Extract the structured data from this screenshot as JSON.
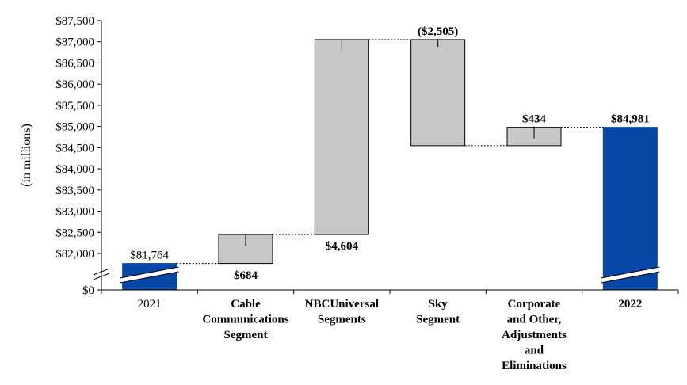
{
  "chart_data": {
    "type": "bar",
    "subtype": "waterfall",
    "ylabel": "(in millions)",
    "y_ticks": [
      "$0",
      "$82,000",
      "$82,500",
      "$83,000",
      "$83,500",
      "$84,000",
      "$84,500",
      "$85,000",
      "$85,500",
      "$86,000",
      "$86,500",
      "$87,000",
      "$87,500"
    ],
    "ylim": [
      81500,
      87500
    ],
    "axis_break": true,
    "grid": false,
    "categories": [
      {
        "lines": [
          "2021"
        ],
        "bold": false
      },
      {
        "lines": [
          "Cable",
          "Communications",
          "Segment"
        ],
        "bold": true
      },
      {
        "lines": [
          "NBCUniversal",
          "Segments"
        ],
        "bold": true
      },
      {
        "lines": [
          "Sky",
          "Segment"
        ],
        "bold": true
      },
      {
        "lines": [
          "Corporate",
          "and Other,",
          "Adjustments",
          "and",
          "Eliminations"
        ],
        "bold": true
      },
      {
        "lines": [
          "2022"
        ],
        "bold": true
      }
    ],
    "bars": [
      {
        "kind": "total",
        "value": 81764,
        "label": "$81,764",
        "label_bold": false
      },
      {
        "kind": "delta",
        "value": 684,
        "label": "$684",
        "label_bold": true
      },
      {
        "kind": "delta",
        "value": 4604,
        "label": "$4,604",
        "label_bold": true
      },
      {
        "kind": "delta",
        "value": -2505,
        "label": "($2,505)",
        "label_bold": true
      },
      {
        "kind": "delta",
        "value": 434,
        "label": "$434",
        "label_bold": true
      },
      {
        "kind": "total",
        "value": 84981,
        "label": "$84,981",
        "label_bold": true
      }
    ],
    "colors": {
      "total": "#0747a6",
      "delta": "#c8c8c8",
      "outline": "#000000"
    }
  }
}
